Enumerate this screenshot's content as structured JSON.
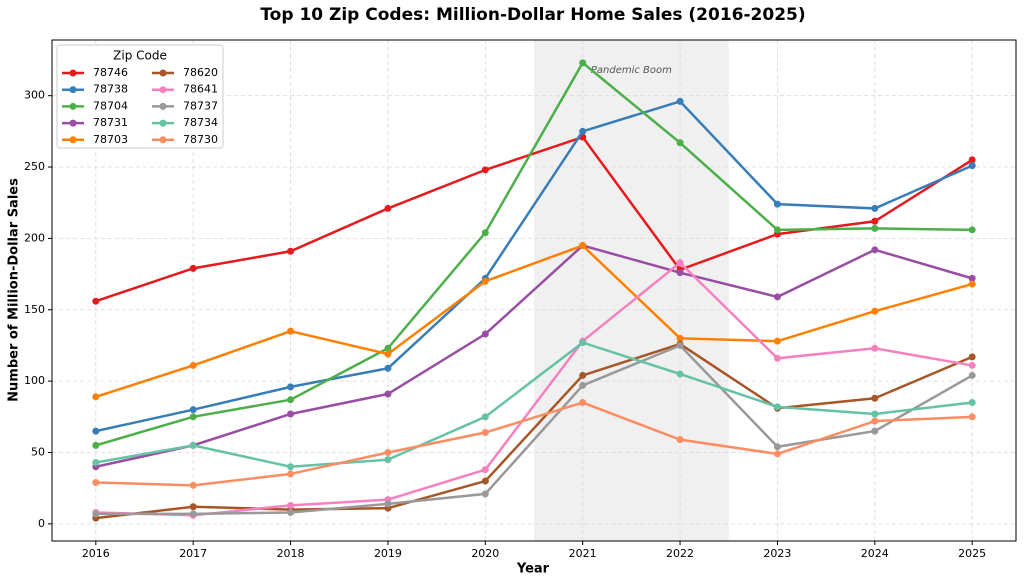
{
  "chart_data": {
    "type": "line",
    "title": "Top 10 Zip Codes: Million-Dollar Home Sales (2016-2025)",
    "x_label": "Year",
    "y_label": "Number of Million-Dollar Sales",
    "x": [
      2016,
      2017,
      2018,
      2019,
      2020,
      2021,
      2022,
      2023,
      2024,
      2025
    ],
    "xlim": [
      2015.55,
      2025.45
    ],
    "xticks": [
      2016,
      2017,
      2018,
      2019,
      2020,
      2021,
      2022,
      2023,
      2024,
      2025
    ],
    "ylim": [
      -12,
      339
    ],
    "yticks": [
      0,
      50,
      100,
      150,
      200,
      250,
      300
    ],
    "grid": true,
    "legend_title": "Zip Code",
    "legend_position": "upper left",
    "shade": {
      "from": 2020.5,
      "to": 2022.5,
      "color": "#f0f0f0",
      "label": "Pandemic Boom"
    },
    "series": [
      {
        "name": "78746",
        "color": "#e41a1c",
        "values": [
          156,
          179,
          191,
          221,
          248,
          271,
          178,
          203,
          212,
          255
        ]
      },
      {
        "name": "78738",
        "color": "#377eb8",
        "values": [
          65,
          80,
          96,
          109,
          172,
          275,
          296,
          224,
          221,
          251
        ]
      },
      {
        "name": "78704",
        "color": "#4daf4a",
        "values": [
          55,
          75,
          87,
          123,
          204,
          323,
          267,
          206,
          207,
          206
        ]
      },
      {
        "name": "78731",
        "color": "#984ea3",
        "values": [
          40,
          55,
          77,
          91,
          133,
          195,
          176,
          159,
          192,
          172
        ]
      },
      {
        "name": "78703",
        "color": "#ff7f00",
        "values": [
          89,
          111,
          135,
          119,
          170,
          195,
          130,
          128,
          149,
          168
        ]
      },
      {
        "name": "78620",
        "color": "#a65628",
        "values": [
          4,
          12,
          10,
          11,
          30,
          104,
          126,
          81,
          88,
          117
        ]
      },
      {
        "name": "78641",
        "color": "#f781bf",
        "values": [
          8,
          6,
          13,
          17,
          38,
          128,
          183,
          116,
          123,
          111
        ]
      },
      {
        "name": "78737",
        "color": "#999999",
        "values": [
          7,
          7,
          8,
          14,
          21,
          97,
          125,
          54,
          65,
          104
        ]
      },
      {
        "name": "78734",
        "color": "#66c2a5",
        "values": [
          43,
          55,
          40,
          45,
          75,
          127,
          105,
          82,
          77,
          85
        ]
      },
      {
        "name": "78730",
        "color": "#fc8d62",
        "values": [
          29,
          27,
          35,
          50,
          64,
          85,
          59,
          49,
          72,
          75
        ]
      }
    ]
  }
}
